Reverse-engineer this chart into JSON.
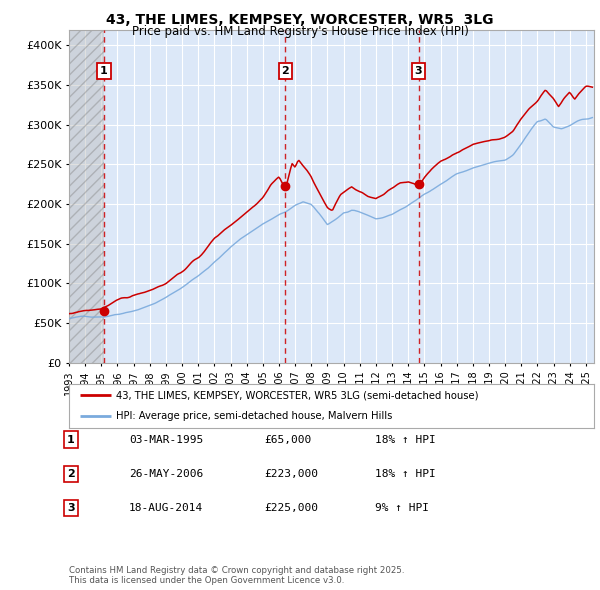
{
  "title1": "43, THE LIMES, KEMPSEY, WORCESTER, WR5  3LG",
  "title2": "Price paid vs. HM Land Registry's House Price Index (HPI)",
  "ylabel_ticks": [
    "£0",
    "£50K",
    "£100K",
    "£150K",
    "£200K",
    "£250K",
    "£300K",
    "£350K",
    "£400K"
  ],
  "ytick_values": [
    0,
    50000,
    100000,
    150000,
    200000,
    250000,
    300000,
    350000,
    400000
  ],
  "ylim": [
    0,
    420000
  ],
  "xlim_start": 1993.0,
  "xlim_end": 2025.5,
  "background_color": "#ffffff",
  "plot_bg_color": "#dce8f8",
  "hatch_region_end": 1995.17,
  "grid_color": "#ffffff",
  "red_line_color": "#cc0000",
  "blue_line_color": "#7aaadd",
  "sale_dates": [
    1995.17,
    2006.4,
    2014.64
  ],
  "sale_prices": [
    65000,
    223000,
    225000
  ],
  "sale_labels": [
    "1",
    "2",
    "3"
  ],
  "legend_label_red": "43, THE LIMES, KEMPSEY, WORCESTER, WR5 3LG (semi-detached house)",
  "legend_label_blue": "HPI: Average price, semi-detached house, Malvern Hills",
  "table_rows": [
    [
      "1",
      "03-MAR-1995",
      "£65,000",
      "18% ↑ HPI"
    ],
    [
      "2",
      "26-MAY-2006",
      "£223,000",
      "18% ↑ HPI"
    ],
    [
      "3",
      "18-AUG-2014",
      "£225,000",
      "9% ↑ HPI"
    ]
  ],
  "footer_text": "Contains HM Land Registry data © Crown copyright and database right 2025.\nThis data is licensed under the Open Government Licence v3.0.",
  "xtick_years": [
    1993,
    1994,
    1995,
    1996,
    1997,
    1998,
    1999,
    2000,
    2001,
    2002,
    2003,
    2004,
    2005,
    2006,
    2007,
    2008,
    2009,
    2010,
    2011,
    2012,
    2013,
    2014,
    2015,
    2016,
    2017,
    2018,
    2019,
    2020,
    2021,
    2022,
    2023,
    2024,
    2025
  ]
}
